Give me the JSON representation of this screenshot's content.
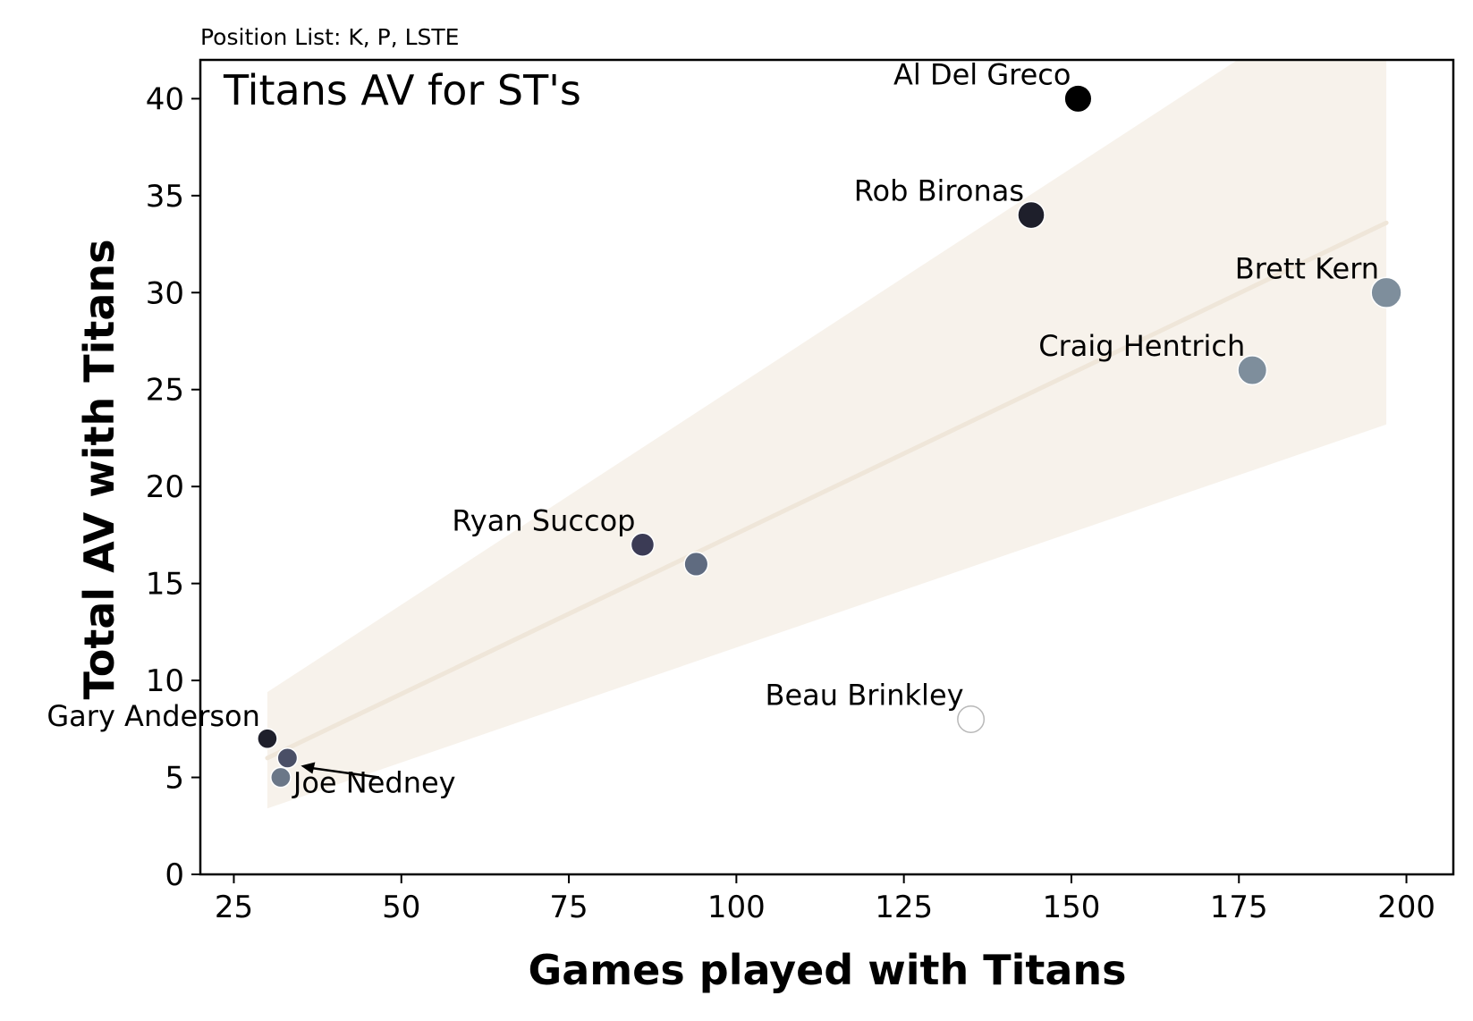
{
  "chart_data": {
    "type": "scatter",
    "title": "Titans AV for ST's",
    "subtitle": "Position List: K, P, LSTE",
    "xlabel": "Games played with Titans",
    "ylabel": "Total AV with Titans",
    "xlim": [
      20,
      207
    ],
    "ylim": [
      0,
      42
    ],
    "xticks": [
      25,
      50,
      75,
      100,
      125,
      150,
      175,
      200
    ],
    "yticks": [
      0,
      5,
      10,
      15,
      20,
      25,
      30,
      35,
      40
    ],
    "grid": false,
    "points": [
      {
        "label": "Al Del Greco",
        "x": 151,
        "y": 40,
        "color": "#000000"
      },
      {
        "label": "Rob Bironas",
        "x": 144,
        "y": 34,
        "color": "#1e1f2b"
      },
      {
        "label": "Brett Kern",
        "x": 197,
        "y": 30,
        "color": "#7e8e9c"
      },
      {
        "label": "Craig Hentrich",
        "x": 177,
        "y": 26,
        "color": "#7e8e9c"
      },
      {
        "label": "Ryan Succop",
        "x": 86,
        "y": 17,
        "color": "#3b3b55"
      },
      {
        "label": "",
        "x": 94,
        "y": 16,
        "color": "#5f6b80"
      },
      {
        "label": "Beau Brinkley",
        "x": 135,
        "y": 8,
        "color": "#ffffff"
      },
      {
        "label": "Gary Anderson",
        "x": 30,
        "y": 7,
        "color": "#1e1f2b"
      },
      {
        "label": "",
        "x": 33,
        "y": 6,
        "color": "#4a4f66"
      },
      {
        "label": "Joe Nedney",
        "x": 32,
        "y": 5,
        "color": "#6b7788"
      }
    ],
    "regression": {
      "x_range": [
        30,
        197
      ],
      "line": [
        6.0,
        33.6
      ],
      "band_upper": [
        9.4,
        47.0
      ],
      "band_lower": [
        3.4,
        23.2
      ],
      "color": "#efe6d9"
    }
  }
}
